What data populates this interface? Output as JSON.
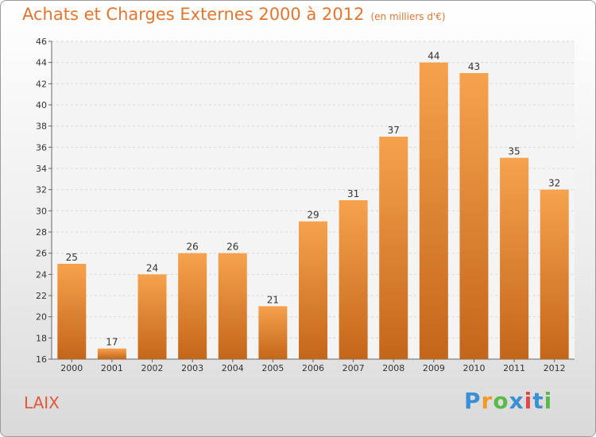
{
  "header": {
    "title": "Achats et Charges Externes 2000 à 2012",
    "unit": "(en milliers d'€)"
  },
  "footer": {
    "commune": "LAIX",
    "brand_letters": [
      "P",
      "r",
      "o",
      "x",
      "i",
      "t",
      "i"
    ]
  },
  "colors": {
    "accent": "#e0762f",
    "bar_top": "#f6a24d",
    "bar_bottom": "#c4661a",
    "commune": "#e0583a",
    "brand": [
      "#3a8fd6",
      "#f09a2a",
      "#5bb84b",
      "#3a8fd6",
      "#e04848",
      "#3a8fd6",
      "#5bb84b"
    ]
  },
  "chart_data": {
    "type": "bar",
    "title": "Achats et Charges Externes 2000 à 2012",
    "subtitle": "(en milliers d'€)",
    "xlabel": "",
    "ylabel": "",
    "categories": [
      "2000",
      "2001",
      "2002",
      "2003",
      "2004",
      "2005",
      "2006",
      "2007",
      "2008",
      "2009",
      "2010",
      "2011",
      "2012"
    ],
    "values": [
      25,
      17,
      24,
      26,
      26,
      21,
      29,
      31,
      37,
      44,
      43,
      35,
      32
    ],
    "ylim": [
      16,
      46
    ],
    "yticks": [
      16,
      18,
      20,
      22,
      24,
      26,
      28,
      30,
      32,
      34,
      36,
      38,
      40,
      42,
      44,
      46
    ],
    "grid": true
  }
}
